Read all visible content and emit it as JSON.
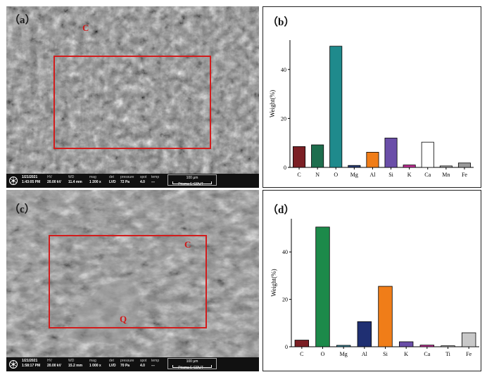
{
  "figure": {
    "panels": {
      "a": {
        "letter": "（a）",
        "markers": [
          "C"
        ]
      },
      "b": {
        "letter": "（b）"
      },
      "c": {
        "letter": "（c）",
        "markers": [
          "C",
          "Q"
        ]
      },
      "d": {
        "letter": "（d）"
      }
    },
    "sem_info": [
      {
        "date": "1/21/2021",
        "time": "1:43:05 PM",
        "hv": "20.00 kV",
        "wd": "11.4 mm",
        "mag": "1 200 x",
        "det": "LVD",
        "pressure": "72 Pa",
        "spot": "4.0",
        "temp": "---",
        "scale": "100 μm",
        "footer": "Prisma E CDUT"
      },
      {
        "date": "1/21/2021",
        "time": "1:58:17 PM",
        "hv": "20.00 kV",
        "wd": "15.2 mm",
        "mag": "1 000 x",
        "det": "LVD",
        "pressure": "70 Pa",
        "spot": "4.0",
        "temp": "---",
        "scale": "100 μm",
        "footer": "Prisma E CDUT"
      }
    ],
    "sem_headers": {
      "hv": "HV",
      "wd": "WD",
      "mag": "mag",
      "det": "det",
      "pressure": "pressure",
      "spot": "spot",
      "temp": "temp"
    }
  },
  "chart_data": [
    {
      "type": "bar",
      "panel": "b",
      "ylabel": "Weight(%)",
      "ylim": [
        0,
        52
      ],
      "yticks": [
        0,
        20,
        40
      ],
      "categories": [
        "C",
        "N",
        "O",
        "Mg",
        "Al",
        "Si",
        "K",
        "Ca",
        "Mn",
        "Fe"
      ],
      "values": [
        8.5,
        9.2,
        49.5,
        0.8,
        6.2,
        12.0,
        1.0,
        10.3,
        0.6,
        1.8
      ],
      "colors": [
        "#7b1f24",
        "#1e6e4e",
        "#1f8a8c",
        "#2b3f78",
        "#f07d18",
        "#6a4ea8",
        "#c02f96",
        "#ffffff",
        "#b0b0b0",
        "#9a9a9a"
      ]
    },
    {
      "type": "bar",
      "panel": "d",
      "ylabel": "Weight(%)",
      "ylim": [
        0,
        54
      ],
      "yticks": [
        0,
        20,
        40
      ],
      "categories": [
        "C",
        "O",
        "Mg",
        "Al",
        "Si",
        "K",
        "Ca",
        "Ti",
        "Fe"
      ],
      "values": [
        2.8,
        50.5,
        0.6,
        10.6,
        25.5,
        2.1,
        0.7,
        0.4,
        5.9
      ],
      "colors": [
        "#7b1f24",
        "#1c8a4a",
        "#3a8aa0",
        "#1f2f72",
        "#f07d18",
        "#6a4ea8",
        "#c02f96",
        "#cfcfcf",
        "#c8c8c8"
      ]
    }
  ]
}
